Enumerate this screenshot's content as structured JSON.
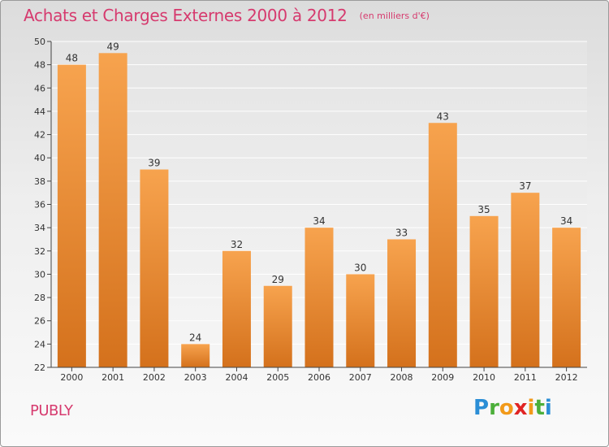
{
  "header": {
    "title": "Achats et Charges Externes 2000 à 2012",
    "subtitle": "(en milliers d'€)"
  },
  "footer": {
    "place": "PUBLY",
    "logo_text": "Proxiti"
  },
  "colors": {
    "title": "#d63a6e",
    "bar_top": "#f7a34e",
    "bar_bottom": "#d4711c",
    "axis": "#444444"
  },
  "chart_data": {
    "type": "bar",
    "title": "Achats et Charges Externes 2000 à 2012",
    "subtitle": "(en milliers d'€)",
    "categories": [
      "2000",
      "2001",
      "2002",
      "2003",
      "2004",
      "2005",
      "2006",
      "2007",
      "2008",
      "2009",
      "2010",
      "2011",
      "2012"
    ],
    "values": [
      48,
      49,
      39,
      24,
      32,
      29,
      34,
      30,
      33,
      43,
      35,
      37,
      34
    ],
    "ylim": [
      22,
      50
    ],
    "yticks": [
      22,
      24,
      26,
      28,
      30,
      32,
      34,
      36,
      38,
      40,
      42,
      44,
      46,
      48,
      50
    ],
    "grid": "horizontal",
    "data_labels": true
  }
}
